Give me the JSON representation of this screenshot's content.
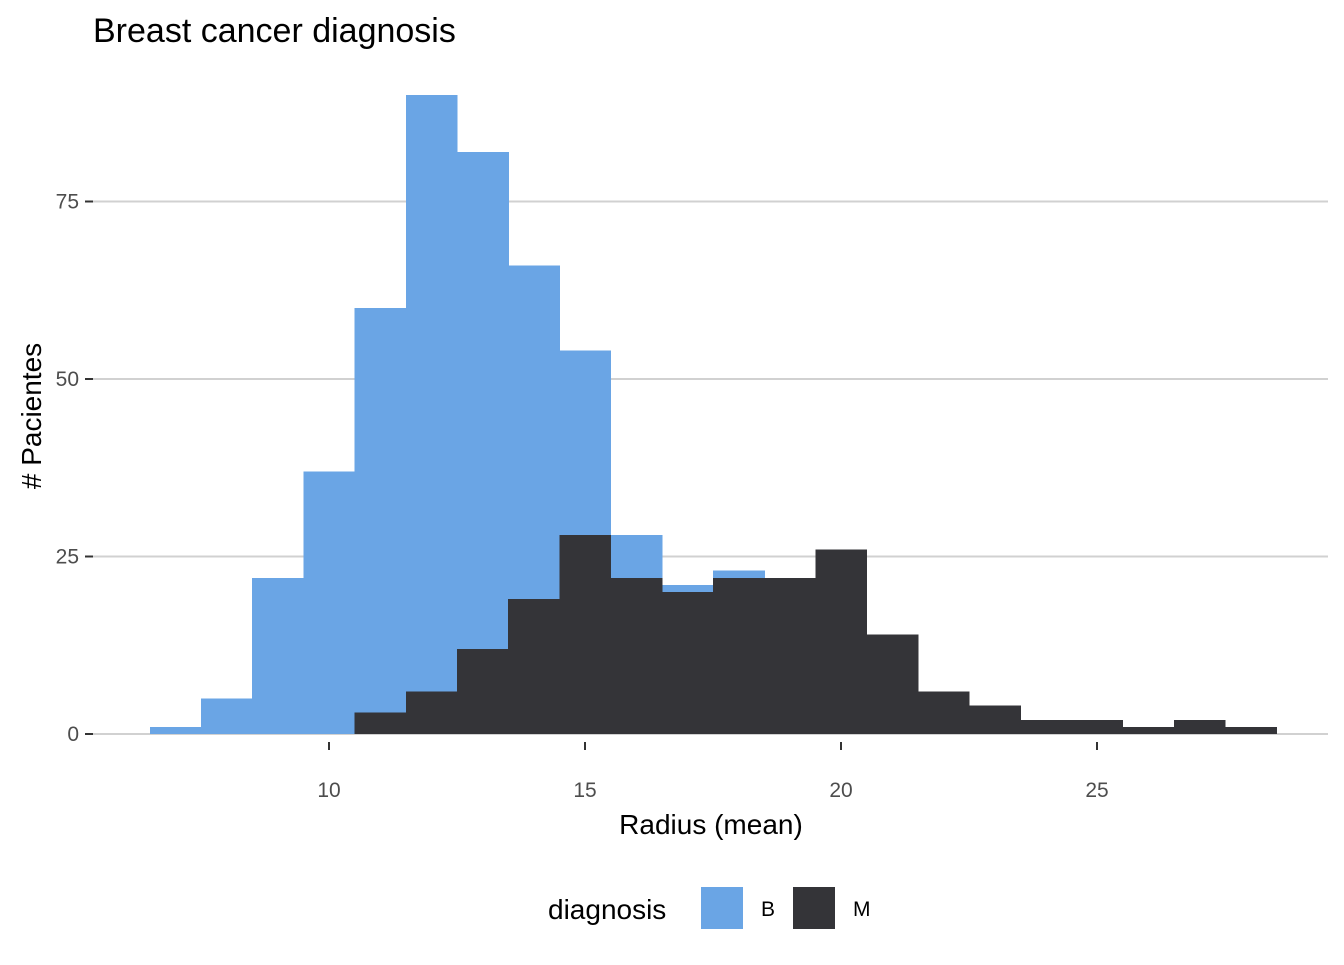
{
  "chart_data": {
    "type": "bar",
    "title": "Breast cancer diagnosis",
    "xlabel": "Radius (mean)",
    "ylabel": "# Pacientes",
    "x_ticks": [
      10,
      15,
      20,
      25
    ],
    "y_ticks": [
      0,
      25,
      50,
      75
    ],
    "xlim": [
      5.5,
      29.5
    ],
    "ylim": [
      0,
      94
    ],
    "bin_width": 1,
    "grid": "horizontal",
    "legend": {
      "title": "diagnosis",
      "placement": "bottom",
      "entries": [
        {
          "label": "B",
          "color": "#6aa5e5"
        },
        {
          "label": "M",
          "color": "#343438"
        }
      ]
    },
    "series": [
      {
        "name": "B",
        "color": "#6aa5e5",
        "bins": [
          {
            "x_start": 6.5,
            "x_end": 7.5,
            "count": 1
          },
          {
            "x_start": 7.5,
            "x_end": 8.5,
            "count": 5
          },
          {
            "x_start": 8.5,
            "x_end": 9.5,
            "count": 22
          },
          {
            "x_start": 9.5,
            "x_end": 10.5,
            "count": 37
          },
          {
            "x_start": 10.5,
            "x_end": 11.5,
            "count": 60
          },
          {
            "x_start": 11.5,
            "x_end": 12.5,
            "count": 90
          },
          {
            "x_start": 12.5,
            "x_end": 13.5,
            "count": 82
          },
          {
            "x_start": 13.5,
            "x_end": 14.5,
            "count": 66
          },
          {
            "x_start": 14.5,
            "x_end": 15.5,
            "count": 54
          },
          {
            "x_start": 15.5,
            "x_end": 16.5,
            "count": 28
          },
          {
            "x_start": 16.5,
            "x_end": 17.5,
            "count": 21
          },
          {
            "x_start": 17.5,
            "x_end": 18.5,
            "count": 23
          }
        ]
      },
      {
        "name": "M",
        "color": "#343438",
        "bins": [
          {
            "x_start": 10.5,
            "x_end": 11.5,
            "count": 3
          },
          {
            "x_start": 11.5,
            "x_end": 12.5,
            "count": 6
          },
          {
            "x_start": 12.5,
            "x_end": 13.5,
            "count": 12
          },
          {
            "x_start": 13.5,
            "x_end": 14.5,
            "count": 19
          },
          {
            "x_start": 14.5,
            "x_end": 15.5,
            "count": 28
          },
          {
            "x_start": 15.5,
            "x_end": 16.5,
            "count": 22
          },
          {
            "x_start": 16.5,
            "x_end": 17.5,
            "count": 20
          },
          {
            "x_start": 17.5,
            "x_end": 18.5,
            "count": 22
          },
          {
            "x_start": 18.5,
            "x_end": 19.5,
            "count": 22
          },
          {
            "x_start": 19.5,
            "x_end": 20.5,
            "count": 26
          },
          {
            "x_start": 20.5,
            "x_end": 21.5,
            "count": 14
          },
          {
            "x_start": 21.5,
            "x_end": 22.5,
            "count": 6
          },
          {
            "x_start": 22.5,
            "x_end": 23.5,
            "count": 4
          },
          {
            "x_start": 23.5,
            "x_end": 24.5,
            "count": 2
          },
          {
            "x_start": 24.5,
            "x_end": 25.5,
            "count": 2
          },
          {
            "x_start": 25.5,
            "x_end": 26.5,
            "count": 1
          },
          {
            "x_start": 26.5,
            "x_end": 27.5,
            "count": 2
          },
          {
            "x_start": 27.5,
            "x_end": 28.5,
            "count": 1
          }
        ]
      }
    ]
  }
}
